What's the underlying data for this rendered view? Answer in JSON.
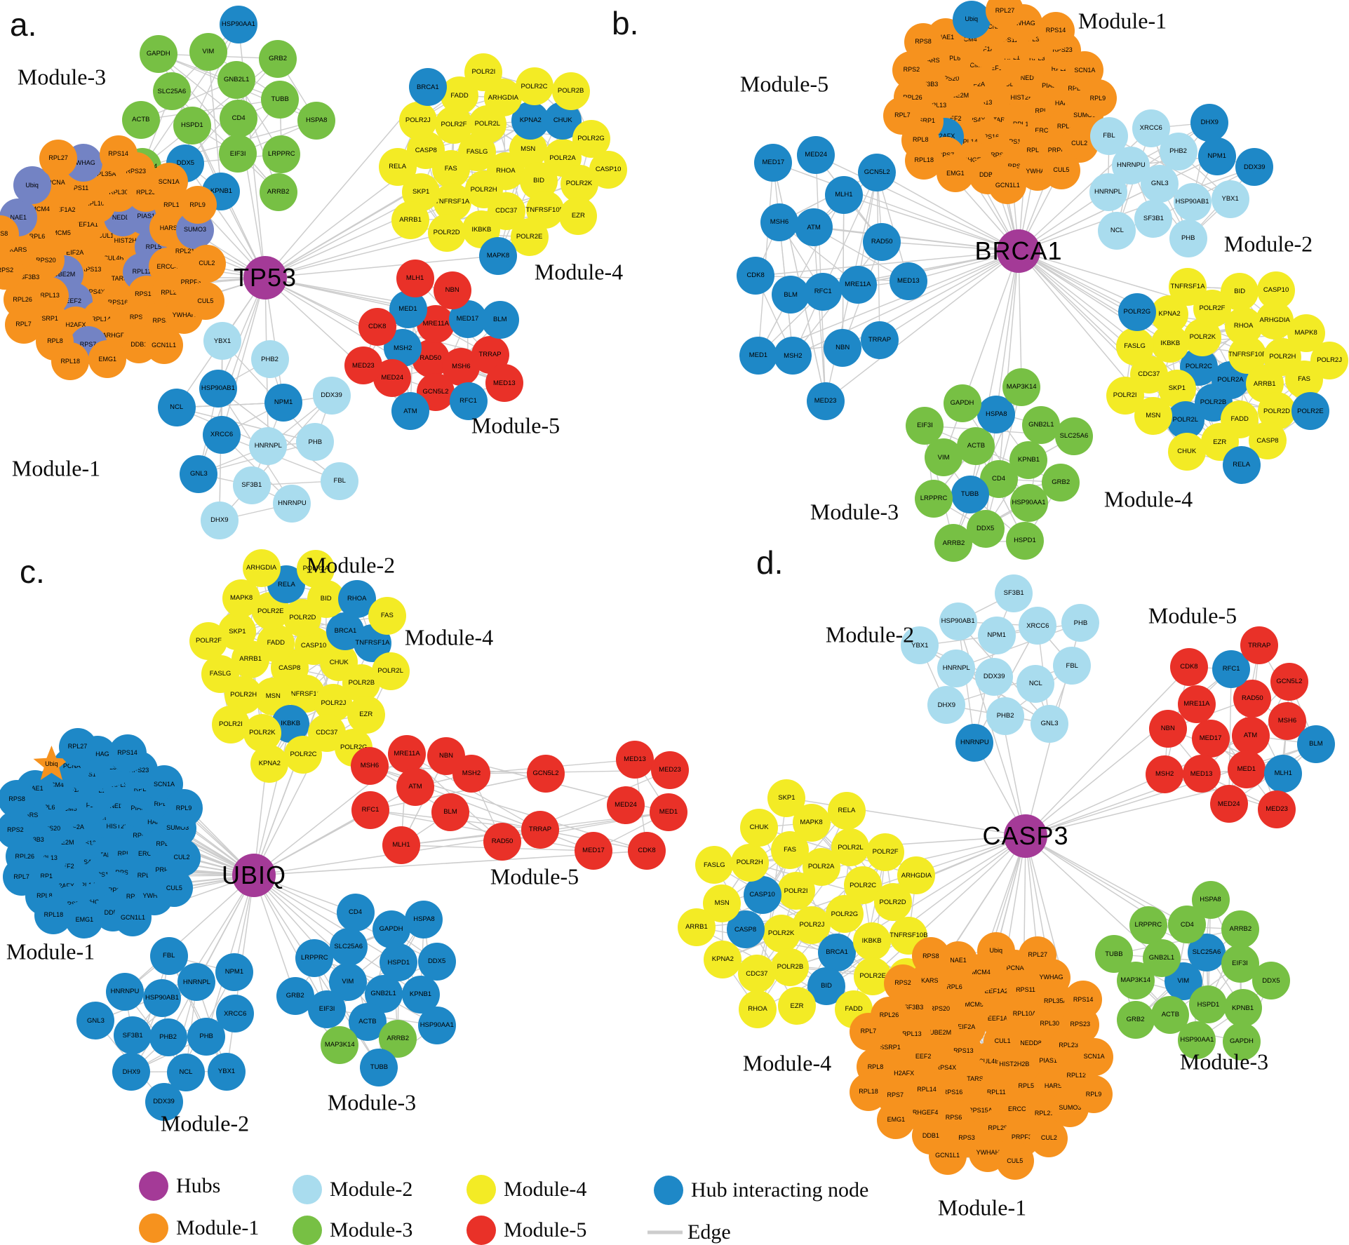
{
  "colors": {
    "hub": "#A43A97",
    "module1": "#F6921E",
    "module2": "#A9DCEE",
    "module3": "#77C044",
    "module4": "#F3EB25",
    "module5": "#E93128",
    "hubnode": "#1E88C7",
    "slate": "#7383C4",
    "edge": "#CDCDCD",
    "text": "#000000"
  },
  "legend": {
    "items": [
      {
        "key": "hub",
        "label": "Hubs",
        "type": "circle"
      },
      {
        "key": "module1",
        "label": "Module-1",
        "type": "circle"
      },
      {
        "key": "module2",
        "label": "Module-2",
        "type": "circle"
      },
      {
        "key": "module3",
        "label": "Module-3",
        "type": "circle"
      },
      {
        "key": "module4",
        "label": "Module-4",
        "type": "circle"
      },
      {
        "key": "module5",
        "label": "Module-5",
        "type": "circle"
      },
      {
        "key": "hubnode",
        "label": "Hub interacting node",
        "type": "circle"
      },
      {
        "key": "edge",
        "label": "Edge",
        "type": "line"
      }
    ]
  },
  "panels": [
    {
      "id": "a",
      "letter": "a.",
      "hub_label": "TP53",
      "modules": [
        {
          "key": "m3",
          "label": "Module-3",
          "base": "module3",
          "nodes": [
            "CD4",
            "HSPD1",
            "GNB2L1",
            "EIF3I",
            "SLC25A6",
            "TUBB",
            "*DDX5",
            "VIM",
            "LRPPRC",
            "ACTB",
            "GRB2",
            "*KPNB1",
            "GAPDH",
            "HSPA8",
            "MAP3K14",
            "*HSP90AA1",
            "ARRB2"
          ]
        },
        {
          "key": "m1",
          "label": "Module-1",
          "base": "module1",
          "nodes": [
            "CUL4B",
            "RPS13",
            "CUL1",
            "TARS",
            "EIF2A",
            "HIST2H2BE",
            "RPS4X",
            "EEF1A1",
            "~RPL11",
            "~UBE2M",
            "~NEDD8",
            "RPS16",
            "MCM5",
            "~RPL5",
            "~EEF2",
            "RPL10A",
            "RPS15A",
            "RPS20",
            "~PIAS1",
            "RPL14",
            "EEF1A2",
            "ERCC4",
            "RPL13",
            "RPL30",
            "RPS6",
            "RPL6",
            "HARS",
            "H2AFX",
            "RPS11",
            "RPL29",
            "SF3B3",
            "RPL23",
            "ARHGEF4",
            "MCM4",
            "RPL21",
            "SSRP1",
            "RPL35A",
            "RPS3",
            "KARS",
            "RPL12",
            "~RPS7",
            "PCNA",
            "PRPF3",
            "RPL26",
            "RPS23",
            "DDB1",
            "~NAE1",
            "~SUMO3",
            "RPL8",
            "~YWHAG",
            "YWHAH",
            "RPS2",
            "SCN1A",
            "EMG1",
            "~Ubiq",
            "CUL2",
            "RPL7",
            "RPS14",
            "GCN1L1",
            "RPS8",
            "RPL9",
            "RPL18",
            "RPL27",
            "CUL5"
          ]
        },
        {
          "key": "m4",
          "label": "Module-4",
          "base": "module4",
          "nodes": [
            "RHOA",
            "FASLG",
            "MSN",
            "POLR2H",
            "POLR2L",
            "BID",
            "FAS",
            "*KPNA2",
            "CDC37",
            "POLR2F",
            "POLR2A",
            "TNFRSF1A",
            "ARHGDIA",
            "TNFRSF10B",
            "CASP8",
            "*CHUK",
            "IKBKB",
            "FADD",
            "POLR2K",
            "SKP1",
            "POLR2C",
            "POLR2E",
            "POLR2J",
            "POLR2G",
            "POLR2D",
            "POLR2I",
            "EZR",
            "RELA",
            "POLR2B",
            "*MAPK8",
            "*BRCA1",
            "CASP10",
            "ARRB1"
          ]
        },
        {
          "key": "m5",
          "label": "Module-5",
          "base": "module5",
          "nodes": [
            "RAD50",
            "MRE11A",
            "MSH6",
            "*MSH2",
            "*MED17",
            "GCN5L2",
            "*MED1",
            "TRRAP",
            "MED24",
            "NBN",
            "*RFC1",
            "CDK8",
            "*BLM",
            "*ATM",
            "MLH1",
            "MED13",
            "MED23"
          ]
        },
        {
          "key": "m2",
          "label": "Module-2",
          "base": "module2",
          "nodes": [
            "HNRNPL",
            "*XRCC6",
            "*NPM1",
            "SF3B1",
            "*HSP90AB1",
            "PHB",
            "*GNL3",
            "PHB2",
            "HNRNPU",
            "*NCL",
            "DDX39",
            "DHX9",
            "YBX1",
            "FBL"
          ]
        }
      ]
    },
    {
      "id": "b",
      "letter": "b.",
      "hub_label": "BRCA1",
      "modules": [
        {
          "key": "m1",
          "label": "Module-1",
          "base": "module1",
          "nodes": [
            "CUL4B",
            "RPS13",
            "CUL1",
            "TARS",
            "EIF2A",
            "HIST2H2BE",
            "RPS4X",
            "EEF1A1",
            "RPL11",
            "UBE2M",
            "NEDD8",
            "RPS16",
            "MCM5",
            "RPL5",
            "EEF2",
            "RPL10A",
            "RPS15A",
            "RPS20",
            "PIAS1",
            "RPL14",
            "EEF1A2",
            "ERCC4",
            "RPL13",
            "RPL30",
            "RPS6",
            "RPL6",
            "HARS",
            "*H2AFX",
            "RPS11",
            "RPL29",
            "SF3B3",
            "RPL23",
            "ARHGEF4",
            "MCM4",
            "RPL21",
            "SSRP1",
            "RPL35A",
            "RPS3",
            "KARS",
            "RPL12",
            "RPS7",
            "PCNA",
            "PRPF3",
            "RPL26",
            "RPS23",
            "DDB1",
            "NAE1",
            "SUMO3",
            "RPL8",
            "YWHAG",
            "YWHAH",
            "RPS2",
            "SCN1A",
            "EMG1",
            "*Ubiq",
            "CUL2",
            "RPL7",
            "RPS14",
            "GCN1L1",
            "RPS8",
            "RPL9",
            "RPL18",
            "RPL27",
            "CUL5"
          ]
        },
        {
          "key": "m5",
          "label": "Module-5",
          "base": "module5",
          "nodes": [
            "*RFC1",
            "*ATM",
            "*MRE11A",
            "*BLM",
            "*MLH1",
            "*NBN",
            "*MSH6",
            "*RAD50",
            "*MSH2",
            "*MED24",
            "*TRRAP",
            "*CDK8",
            "*GCN5L2",
            "*MED23",
            "*MED17",
            "*MED13",
            "*MED1"
          ]
        },
        {
          "key": "m2",
          "label": "Module-2",
          "base": "module2",
          "nodes": [
            "GNL3",
            "PHB2",
            "HSP90AB1",
            "HNRNPU",
            "*NPM1",
            "SF3B1",
            "XRCC6",
            "YBX1",
            "HNRNPL",
            "*DHX9",
            "PHB",
            "FBL",
            "*DDX39",
            "NCL"
          ]
        },
        {
          "key": "m4",
          "label": "Module-4",
          "base": "module4",
          "nodes": [
            "*POLR2A",
            "*POLR2C",
            "TNFRSF10B",
            "*POLR2B",
            "POLR2K",
            "ARRB1",
            "SKP1",
            "RHOA",
            "FADD",
            "IKBKB",
            "POLR2H",
            "*POLR2L",
            "POLR2F",
            "POLR2D",
            "CDC37",
            "ARHGDIA",
            "EZR",
            "KPNA2",
            "FAS",
            "MSN",
            "BID",
            "CASP8",
            "FASLG",
            "MAPK8",
            "CHUK",
            "TNFRSF1A",
            "*POLR2E",
            "POLR2I",
            "CASP10",
            "*RELA",
            "*POLR2G",
            "POLR2J"
          ]
        },
        {
          "key": "m3",
          "label": "Module-3",
          "base": "module3",
          "nodes": [
            "CD4",
            "ACTB",
            "KPNB1",
            "*TUBB",
            "*HSPA8",
            "HSP90AA1",
            "VIM",
            "GNB2L1",
            "DDX5",
            "GAPDH",
            "GRB2",
            "LRPPRC",
            "MAP3K14",
            "HSPD1",
            "EIF3I",
            "SLC25A6",
            "ARRB2"
          ]
        }
      ]
    },
    {
      "id": "c",
      "letter": "c.",
      "hub_label": "UBIQ",
      "modules": [
        {
          "key": "m1",
          "label": "Module-1",
          "base": "hubnode",
          "nodes": [
            "CUL4B",
            "RPS13",
            "CUL1",
            "TARS",
            "EIF2A",
            "HIST2H2BE",
            "RPS4X",
            "EEF1A1",
            "RPL11",
            "UBE2M",
            "NEDD8",
            "RPS16",
            "MCM5",
            "RPL5",
            "EEF2",
            "RPL10A",
            "RPS15A",
            "RPS20",
            "PIAS1",
            "RPL14",
            "EEF1A2",
            "ERCC4",
            "RPL13",
            "RPL30",
            "RPS6",
            "RPL6",
            "HARS",
            "H2AFX",
            "RPS11",
            "RPL29",
            "SF3B3",
            "RPL23",
            "ARHGEF4",
            "MCM4",
            "RPL21",
            "SSRP1",
            "RPL35A",
            "RPS3",
            "KARS",
            "RPL12",
            "RPS7",
            "PCNA",
            "PRPF3",
            "RPL26",
            "RPS23",
            "DDB1",
            "NAE1",
            "SUMO3",
            "RPL8",
            "YWHAG",
            "YWHAH",
            "RPS2",
            "SCN1A",
            "EMG1",
            "^Ubiq",
            "CUL2",
            "RPL7",
            "RPS14",
            "GCN1L1",
            "RPS8",
            "RPL9",
            "RPL18",
            "RPL27",
            "CUL5"
          ]
        },
        {
          "key": "m4",
          "label": "Module-4",
          "base": "module4",
          "nodes": [
            "CASP8",
            "CASP10",
            "TNFRSF10B",
            "FADD",
            "CHUK",
            "MSN",
            "POLR2D",
            "POLR2J",
            "ARRB1",
            "*BRCA1",
            "*IKBKB",
            "POLR2E",
            "POLR2B",
            "POLR2H",
            "BID",
            "CDC37",
            "SKP1",
            "*TNFRSF1A",
            "POLR2K",
            "*RELA",
            "EZR",
            "FASLG",
            "*RHOA",
            "POLR2C",
            "MAPK8",
            "POLR2L",
            "POLR2I",
            "POLR2A",
            "POLR2G",
            "POLR2F",
            "FAS",
            "KPNA2",
            "ARHGDIA"
          ]
        },
        {
          "key": "m5",
          "label": "Module-5",
          "base": "module5",
          "nodes": [
            "MRE11A",
            "NBN",
            "MSH6",
            "MSH2",
            "ATM",
            "GCN5L2",
            "MED13",
            "MED23",
            "RFC1",
            "BLM",
            "TRRAP",
            "MED24",
            "MED1",
            "MLH1",
            "RAD50",
            "MED17",
            "CDK8"
          ]
        },
        {
          "key": "m2",
          "label": "Module-2",
          "base": "hubnode",
          "nodes": [
            "PHB2",
            "HSP90AB1",
            "PHB",
            "SF3B1",
            "HNRNPL",
            "NCL",
            "HNRNPU",
            "XRCC6",
            "DHX9",
            "FBL",
            "YBX1",
            "GNL3",
            "NPM1",
            "DDX39"
          ]
        },
        {
          "key": "m3",
          "label": "Module-3",
          "base": "hubnode",
          "nodes": [
            "GNB2L1",
            "VIM",
            "HSPD1",
            "ACTB",
            "SLC25A6",
            "KPNB1",
            "EIF3I",
            "GAPDH",
            "%ARRB2",
            "LRPPRC",
            "DDX5",
            "%MAP3K14",
            "CD4",
            "HSP90AA1",
            "GRB2",
            "HSPA8",
            "TUBB"
          ]
        }
      ]
    },
    {
      "id": "d",
      "letter": "d.",
      "hub_label": "CASP3",
      "modules": [
        {
          "key": "m2",
          "label": "Module-2",
          "base": "module2",
          "nodes": [
            "DDX39",
            "NPM1",
            "NCL",
            "HNRNPL",
            "XRCC6",
            "PHB2",
            "HSP90AB1",
            "FBL",
            "DHX9",
            "SF3B1",
            "GNL3",
            "YBX1",
            "PHB",
            "*HNRNPU"
          ]
        },
        {
          "key": "m5",
          "label": "Module-5",
          "base": "module5",
          "nodes": [
            "ATM",
            "MED17",
            "RAD50",
            "MED1",
            "MRE11A",
            "MSH6",
            "MED13",
            "*RFC1",
            "*MLH1",
            "NBN",
            "GCN5L2",
            "MED24",
            "CDK8",
            "*BLM",
            "MSH2",
            "TRRAP",
            "MED23"
          ]
        },
        {
          "key": "m4",
          "label": "Module-4",
          "base": "module4",
          "nodes": [
            "POLR2J",
            "POLR2I",
            "POLR2G",
            "POLR2K",
            "POLR2A",
            "*BRCA1",
            "*CASP10",
            "POLR2C",
            "POLR2B",
            "FAS",
            "IKBKB",
            "*CASP8",
            "POLR2L",
            "*BID",
            "POLR2H",
            "POLR2D",
            "CDC37",
            "MAPK8",
            "POLR2E",
            "MSN",
            "POLR2F",
            "EZR",
            "CHUK",
            "TNFRSF10B",
            "KPNA2",
            "RELA",
            "FADD",
            "FASLG",
            "ARHGDIA",
            "RHOA",
            "SKP1",
            "TNFRSF1A",
            "ARRB1"
          ]
        },
        {
          "key": "m3",
          "label": "Module-3",
          "base": "module3",
          "nodes": [
            "*VIM",
            "*SLC25A6",
            "HSPD1",
            "GNB2L1",
            "EIF3I",
            "ACTB",
            "CD4",
            "KPNB1",
            "MAP3K14",
            "ARRB2",
            "HSP90AA1",
            "LRPPRC",
            "DDX5",
            "GRB2",
            "HSPA8",
            "GAPDH",
            "TUBB"
          ]
        },
        {
          "key": "m1",
          "label": "Module-1",
          "base": "module1",
          "nodes": [
            "CUL4B",
            "RPS13",
            "CUL1",
            "TARS",
            "EIF2A",
            "HIST2H2BE",
            "RPS4X",
            "EEF1A1",
            "RPL11",
            "UBE2M",
            "NEDD8",
            "RPS16",
            "MCM5",
            "RPL5",
            "EEF2",
            "RPL10A",
            "RPS15A",
            "RPS20",
            "PIAS1",
            "RPL14",
            "EEF1A2",
            "ERCC4",
            "RPL13",
            "RPL30",
            "RPS6",
            "RPL6",
            "HARS",
            "H2AFX",
            "RPS11",
            "RPL29",
            "SF3B3",
            "RPL23",
            "ARHGEF4",
            "MCM4",
            "RPL21",
            "SSRP1",
            "RPL35A",
            "RPS3",
            "KARS",
            "RPL12",
            "RPS7",
            "PCNA",
            "PRPF3",
            "RPL26",
            "RPS23",
            "DDB1",
            "NAE1",
            "SUMO3",
            "RPL8",
            "YWHAG",
            "YWHAH",
            "RPS2",
            "SCN1A",
            "EMG1",
            "Ubiq",
            "CUL2",
            "RPL7",
            "RPS14",
            "GCN1L1",
            "RPS8",
            "RPL9",
            "RPL18",
            "RPL27",
            "CUL5"
          ]
        }
      ]
    }
  ]
}
